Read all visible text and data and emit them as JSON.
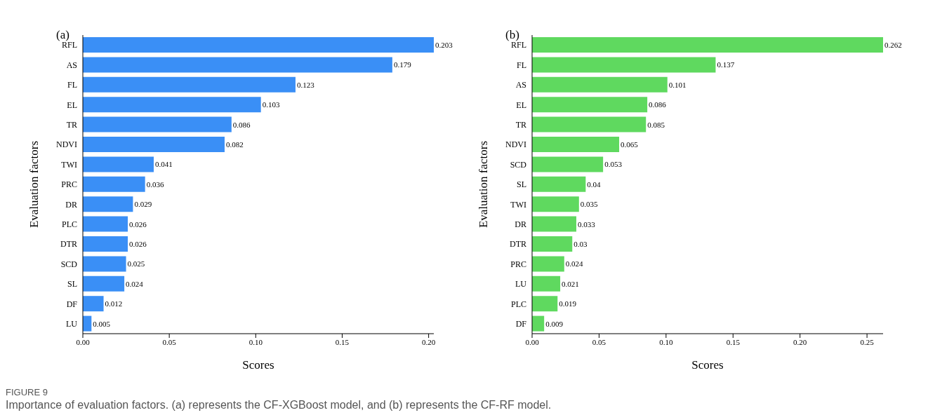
{
  "chart_data": [
    {
      "type": "bar",
      "orientation": "horizontal",
      "title": "(a)",
      "xlabel": "Scores",
      "ylabel": "Evaluation factors",
      "categories": [
        "RFL",
        "AS",
        "FL",
        "EL",
        "TR",
        "NDVI",
        "TWI",
        "PRC",
        "DR",
        "PLC",
        "DTR",
        "SCD",
        "SL",
        "DF",
        "LU"
      ],
      "values": [
        0.203,
        0.179,
        0.123,
        0.103,
        0.086,
        0.082,
        0.041,
        0.036,
        0.029,
        0.026,
        0.026,
        0.025,
        0.024,
        0.012,
        0.005
      ],
      "color": "#3a8ff6",
      "xlim": [
        0,
        0.203
      ],
      "xticks": [
        {
          "value": 0,
          "label": "0.00"
        },
        {
          "value": 0.05,
          "label": "0.05"
        },
        {
          "value": 0.1,
          "label": "0.10"
        },
        {
          "value": 0.15,
          "label": "0.15"
        },
        {
          "value": 0.2,
          "label": "0.20"
        }
      ],
      "data_labels": true,
      "grid": false,
      "legend": false,
      "annotations": [
        "FIGURE 9",
        "Importance of evaluation factors. (a) represents the CF-XGBoost model, and (b) represents the CF-RF model."
      ]
    },
    {
      "type": "bar",
      "orientation": "horizontal",
      "title": "(b)",
      "xlabel": "Scores",
      "ylabel": "Evaluation factors",
      "categories": [
        "RFL",
        "FL",
        "AS",
        "EL",
        "TR",
        "NDVI",
        "SCD",
        "SL",
        "TWI",
        "DR",
        "DTR",
        "PRC",
        "LU",
        "PLC",
        "DF"
      ],
      "values": [
        0.262,
        0.137,
        0.101,
        0.086,
        0.085,
        0.065,
        0.053,
        0.04,
        0.035,
        0.033,
        0.03,
        0.024,
        0.021,
        0.019,
        0.009
      ],
      "color": "#5fd95f",
      "xlim": [
        0,
        0.262
      ],
      "xticks": [
        {
          "value": 0,
          "label": "0.00"
        },
        {
          "value": 0.05,
          "label": "0.05"
        },
        {
          "value": 0.1,
          "label": "0.10"
        },
        {
          "value": 0.15,
          "label": "0.15"
        },
        {
          "value": 0.2,
          "label": "0.20"
        },
        {
          "value": 0.25,
          "label": "0.25"
        }
      ],
      "data_labels": true,
      "grid": false,
      "legend": false
    }
  ]
}
